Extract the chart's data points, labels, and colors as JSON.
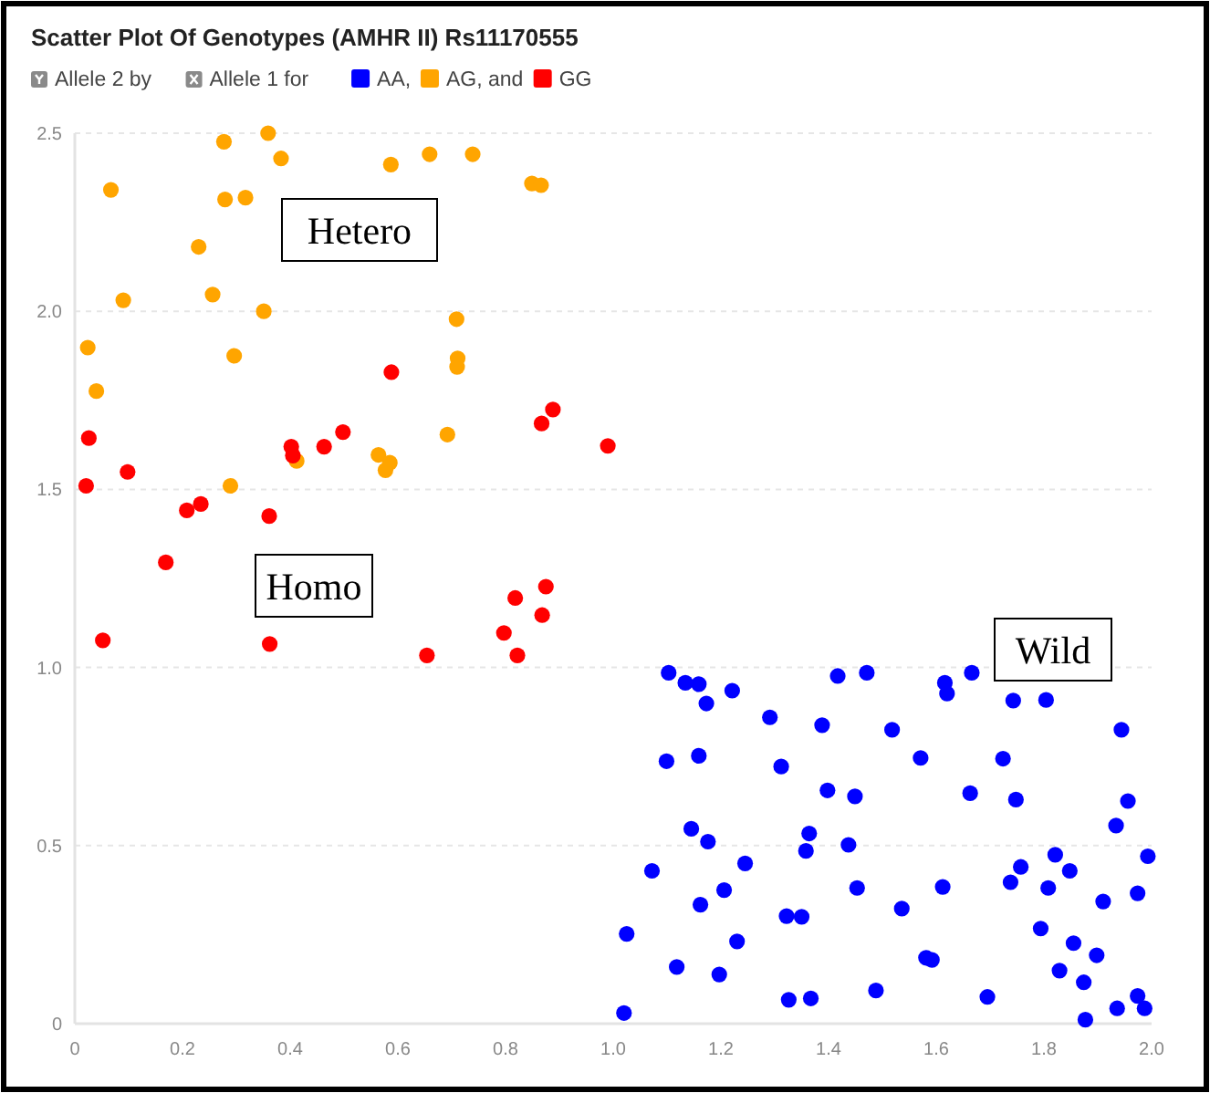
{
  "chart_data": {
    "type": "scatter",
    "title": "Scatter Plot Of Genotypes (AMHR II) Rs11170555",
    "legend_title": "Allele 2 by Allele 1 for",
    "legend": "top left",
    "marker": "circle",
    "grid": "y",
    "xlim": [
      0,
      2
    ],
    "xticks": [
      0,
      0.2,
      0.4,
      0.6,
      0.8,
      {
        "value": 1,
        "label": "1.0"
      },
      1.2,
      1.4,
      1.6,
      1.8,
      {
        "value": 2,
        "label": "2.0"
      }
    ],
    "ylim": [
      0,
      2.5
    ],
    "yticks": [
      0,
      0.5,
      {
        "value": 1,
        "label": "1.0"
      },
      1.5,
      {
        "value": 2,
        "label": "2.0"
      },
      2.5
    ],
    "annotations": [
      "Hetero",
      "Homo",
      "Wild"
    ],
    "series": [
      {
        "name": "AA,",
        "color": "#0000ff",
        "x": [
          1.103,
          1.134,
          1.159,
          1.173,
          1.221,
          1.291,
          1.417,
          1.471,
          1.388,
          1.518,
          1.616,
          1.62,
          1.666,
          1.743,
          1.804,
          1.571,
          1.724,
          1.944,
          1.099,
          1.159,
          1.312,
          1.398,
          1.449,
          1.663,
          1.748,
          1.956,
          1.934,
          1.145,
          1.176,
          1.364,
          1.358,
          1.437,
          1.993,
          1.821,
          1.848,
          1.757,
          1.738,
          1.808,
          1.974,
          1.91,
          1.072,
          1.245,
          1.206,
          1.162,
          1.453,
          1.612,
          1.536,
          1.322,
          1.35,
          1.025,
          1.23,
          1.794,
          1.855,
          1.898,
          1.581,
          1.592,
          1.118,
          1.197,
          1.829,
          1.874,
          1.326,
          1.367,
          1.488,
          1.695,
          1.974,
          1.936,
          1.987,
          1.877,
          1.02
        ],
        "values": [
          0.985,
          0.957,
          0.953,
          0.899,
          0.935,
          0.86,
          0.976,
          0.985,
          0.838,
          0.825,
          0.957,
          0.927,
          0.985,
          0.907,
          0.909,
          0.746,
          0.744,
          0.825,
          0.737,
          0.752,
          0.722,
          0.655,
          0.638,
          0.647,
          0.629,
          0.625,
          0.556,
          0.547,
          0.511,
          0.534,
          0.485,
          0.502,
          0.47,
          0.474,
          0.429,
          0.44,
          0.397,
          0.381,
          0.366,
          0.343,
          0.429,
          0.45,
          0.375,
          0.334,
          0.381,
          0.384,
          0.323,
          0.302,
          0.3,
          0.252,
          0.231,
          0.267,
          0.226,
          0.192,
          0.185,
          0.179,
          0.159,
          0.138,
          0.149,
          0.116,
          0.067,
          0.071,
          0.093,
          0.075,
          0.078,
          0.043,
          0.043,
          0.011,
          0.03
        ]
      },
      {
        "name": "AG, and",
        "color": "#ffa500",
        "x": [
          0.277,
          0.359,
          0.383,
          0.067,
          0.279,
          0.317,
          0.587,
          0.659,
          0.739,
          0.849,
          0.866,
          0.23,
          0.09,
          0.256,
          0.351,
          0.709,
          0.024,
          0.04,
          0.296,
          0.711,
          0.71,
          0.692,
          0.564,
          0.585,
          0.577,
          0.412,
          0.289
        ],
        "values": [
          2.476,
          2.5,
          2.429,
          2.341,
          2.314,
          2.319,
          2.412,
          2.441,
          2.441,
          2.359,
          2.354,
          2.181,
          2.031,
          2.047,
          2.0,
          1.978,
          1.898,
          1.776,
          1.875,
          1.868,
          1.844,
          1.654,
          1.597,
          1.575,
          1.554,
          1.58,
          1.51
        ]
      },
      {
        "name": "GG",
        "color": "#ff0000",
        "x": [
          0.026,
          0.021,
          0.098,
          0.208,
          0.234,
          0.169,
          0.361,
          0.402,
          0.405,
          0.463,
          0.498,
          0.588,
          0.867,
          0.888,
          0.99,
          0.875,
          0.818,
          0.868,
          0.797,
          0.052,
          0.362,
          0.654,
          0.822
        ],
        "values": [
          1.644,
          1.51,
          1.549,
          1.441,
          1.459,
          1.295,
          1.425,
          1.62,
          1.595,
          1.62,
          1.661,
          1.829,
          1.685,
          1.724,
          1.622,
          1.227,
          1.195,
          1.147,
          1.097,
          1.076,
          1.066,
          1.034,
          1.034
        ]
      }
    ]
  }
}
